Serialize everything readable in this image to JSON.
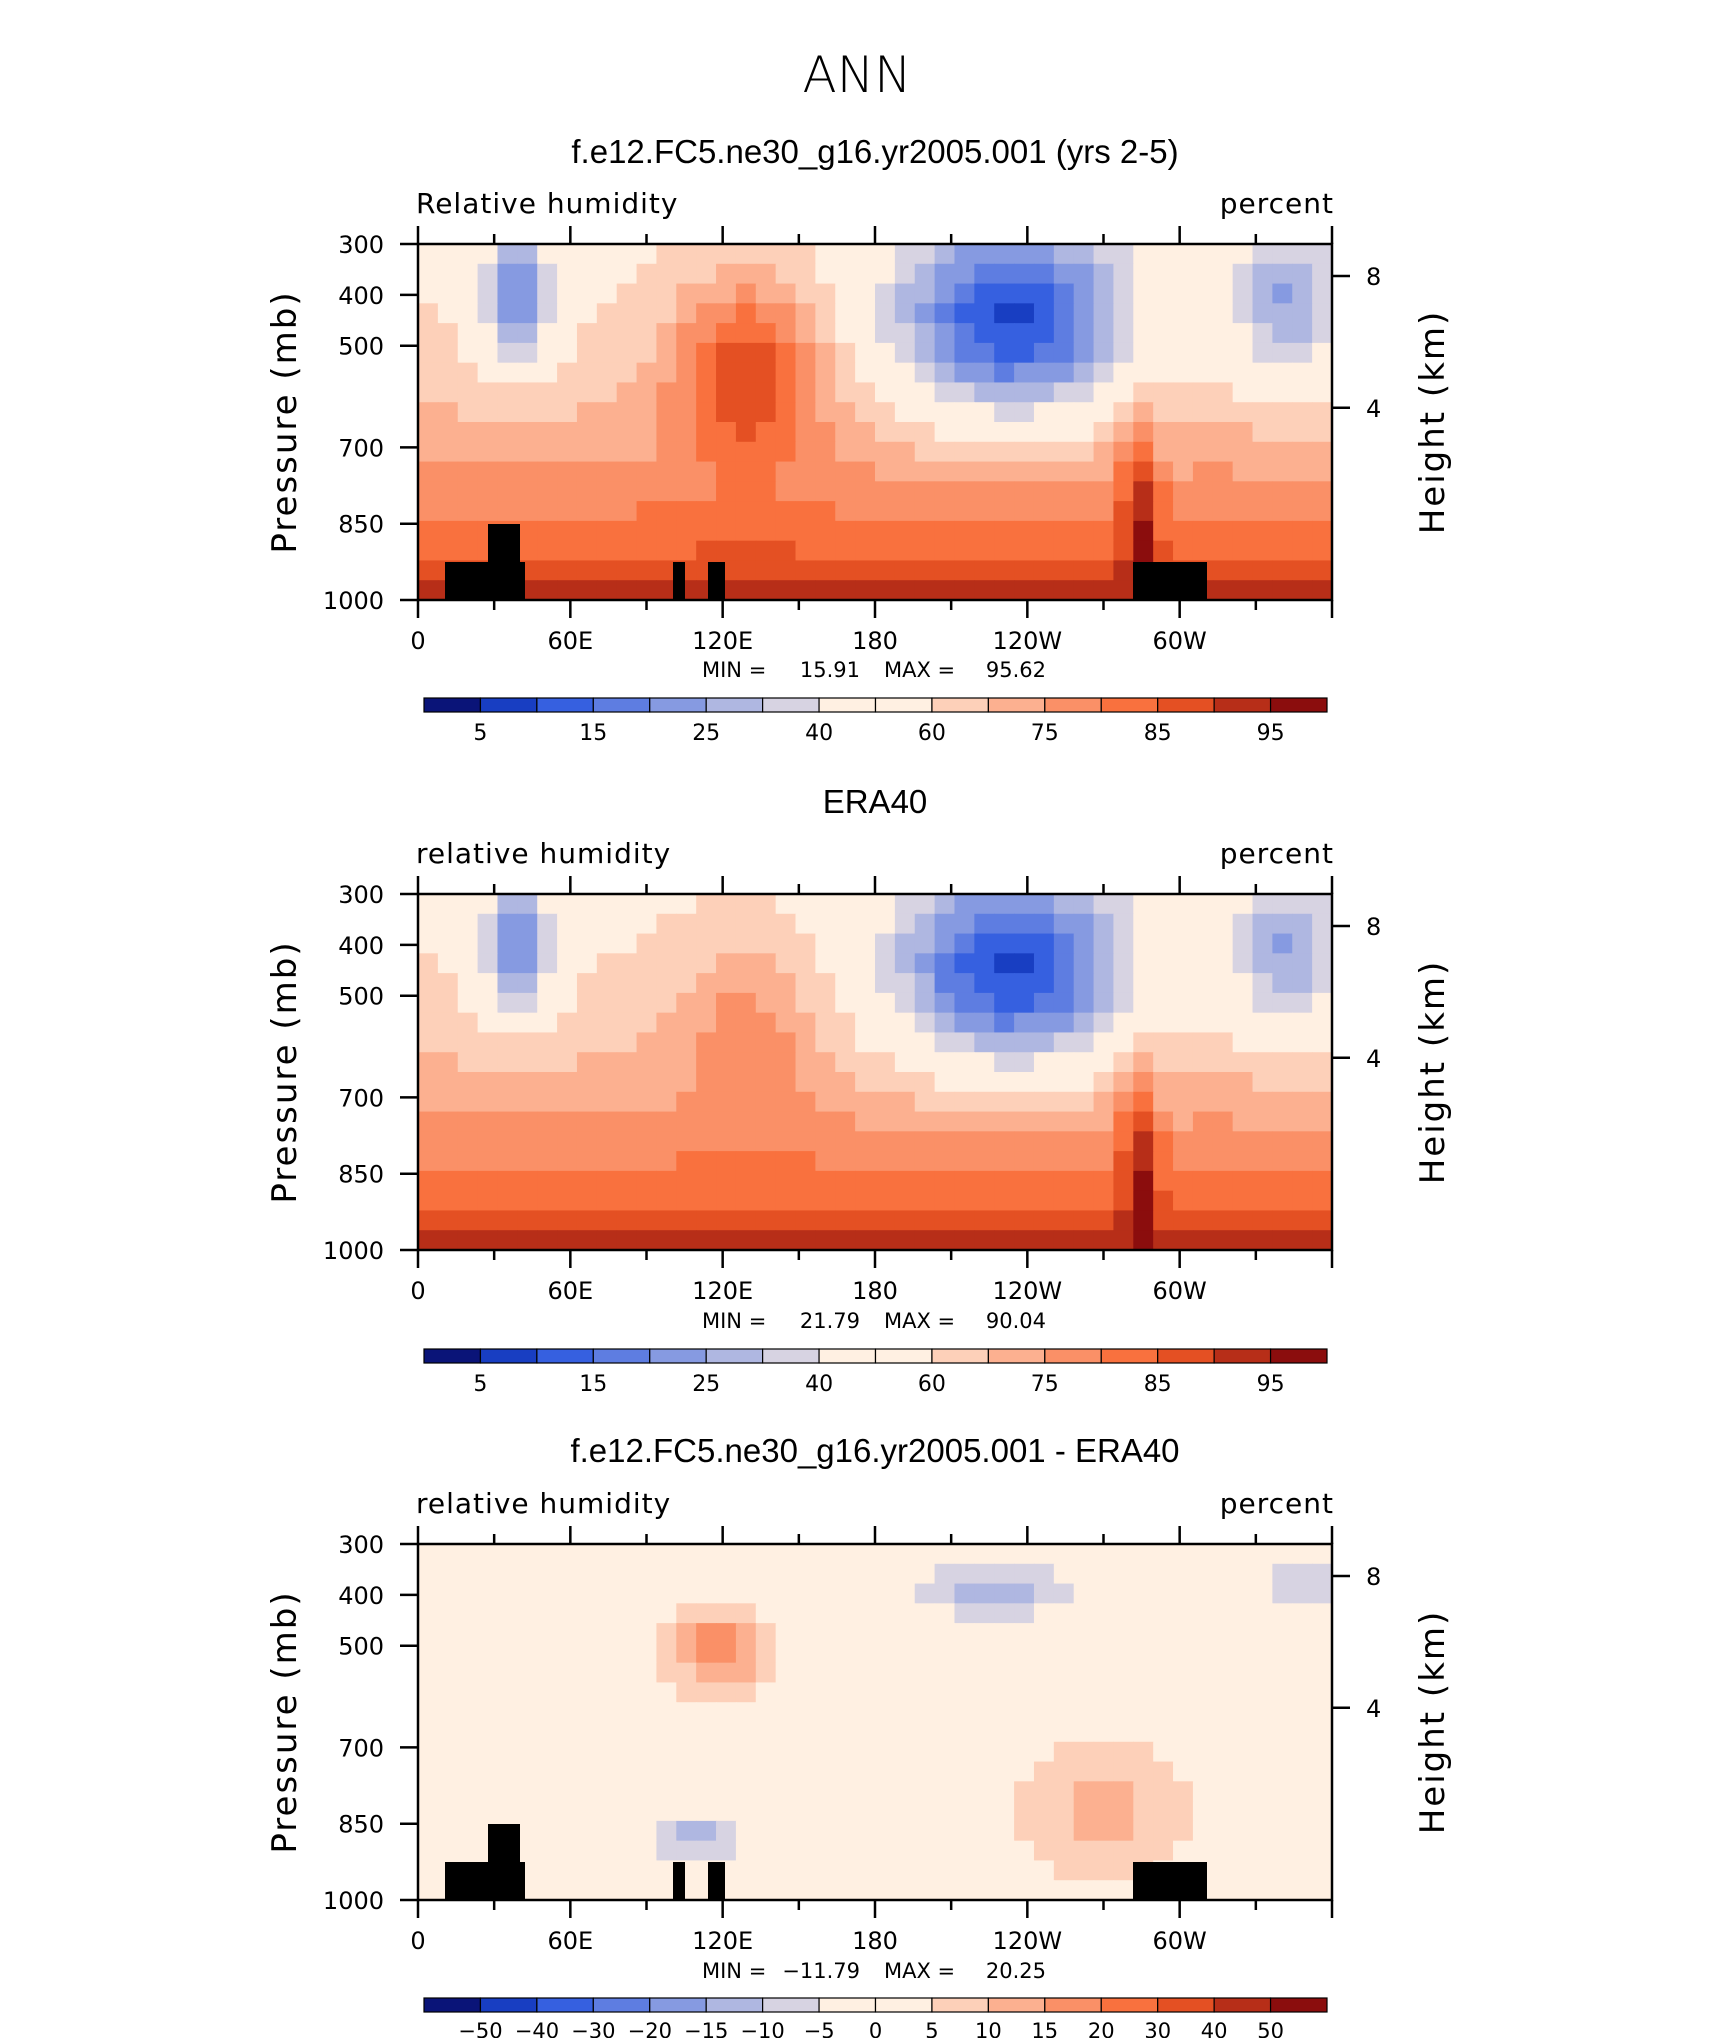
{
  "figure": {
    "main_title": "ANN"
  },
  "chart_data": [
    {
      "type": "heatmap",
      "title": "f.e12.FC5.ne30_g16.yr2005.001 (yrs 2-5)",
      "variable": "Relative humidity",
      "units": "percent",
      "xlabel": "",
      "ylabel": "Pressure (mb)",
      "ylabel_right": "Height (km)",
      "x_ticks": [
        "0",
        "60E",
        "120E",
        "180",
        "120W",
        "60W"
      ],
      "y_ticks": [
        "300",
        "400",
        "500",
        "700",
        "850",
        "1000"
      ],
      "y_ticks_right": [
        "8",
        "4"
      ],
      "stats": {
        "min_label": "MIN =",
        "min": "15.91",
        "max_label": "MAX =",
        "max": "95.62"
      },
      "colorbar_labels": [
        "5",
        "15",
        "25",
        "40",
        "60",
        "75",
        "85",
        "95"
      ],
      "colors": {
        "low": "#1e4fe0",
        "mid": "#fff0e2",
        "high": "#8b0d0d"
      }
    },
    {
      "type": "heatmap",
      "title": "ERA40",
      "variable": "relative humidity",
      "units": "percent",
      "xlabel": "",
      "ylabel": "Pressure (mb)",
      "ylabel_right": "Height (km)",
      "x_ticks": [
        "0",
        "60E",
        "120E",
        "180",
        "120W",
        "60W"
      ],
      "y_ticks": [
        "300",
        "400",
        "500",
        "700",
        "850",
        "1000"
      ],
      "y_ticks_right": [
        "8",
        "4"
      ],
      "stats": {
        "min_label": "MIN =",
        "min": "21.79",
        "max_label": "MAX =",
        "max": "90.04"
      },
      "colorbar_labels": [
        "5",
        "15",
        "25",
        "40",
        "60",
        "75",
        "85",
        "95"
      ],
      "colors": {
        "low": "#1e4fe0",
        "mid": "#fff0e2",
        "high": "#8b0d0d"
      }
    },
    {
      "type": "heatmap",
      "title": "f.e12.FC5.ne30_g16.yr2005.001 - ERA40",
      "variable": "relative humidity",
      "units": "percent",
      "xlabel": "",
      "ylabel": "Pressure (mb)",
      "ylabel_right": "Height (km)",
      "x_ticks": [
        "0",
        "60E",
        "120E",
        "180",
        "120W",
        "60W"
      ],
      "y_ticks": [
        "300",
        "400",
        "500",
        "700",
        "850",
        "1000"
      ],
      "y_ticks_right": [
        "8",
        "4"
      ],
      "stats": {
        "min_label": "MIN =",
        "min": "−11.79",
        "max_label": "MAX =",
        "max": "20.25"
      },
      "colorbar_labels": [
        "−50",
        "−40",
        "−30",
        "−20",
        "−15",
        "−10",
        "−5",
        "0",
        "5",
        "10",
        "15",
        "20",
        "30",
        "40",
        "50"
      ],
      "colors": {
        "low": "#1e4fe0",
        "mid": "#fff0e2",
        "high": "#8b0d0d"
      }
    }
  ]
}
